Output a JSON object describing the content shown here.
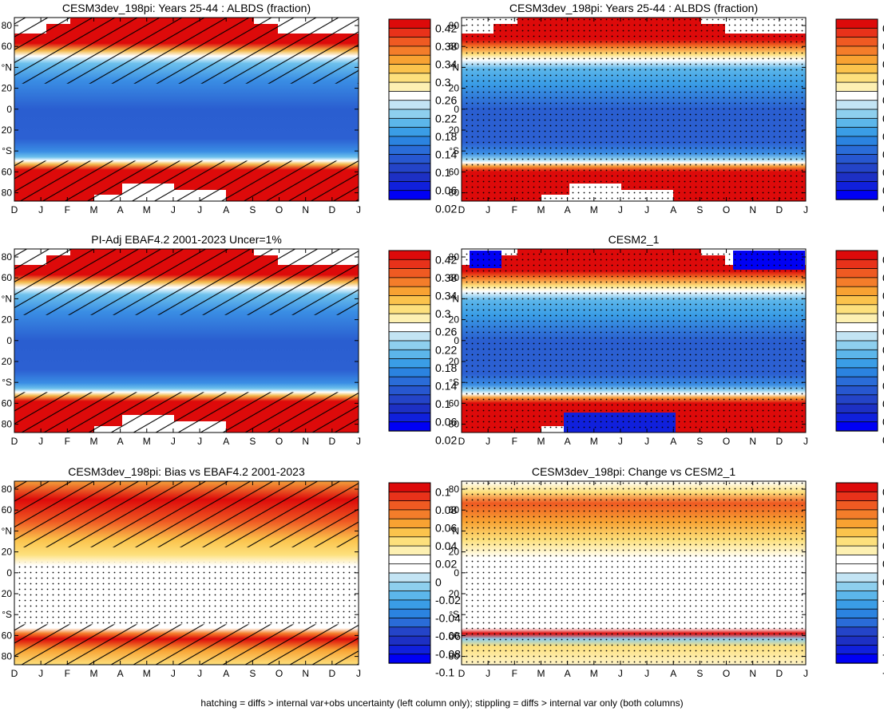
{
  "months": [
    "D",
    "J",
    "F",
    "M",
    "A",
    "M",
    "J",
    "J",
    "A",
    "S",
    "O",
    "N",
    "D",
    "J"
  ],
  "lat_labels": [
    "80",
    "60",
    "°N",
    "20",
    "0",
    "20",
    "°S",
    "60",
    "80"
  ],
  "footer": "hatching = diffs > internal var+obs uncertainty (left column only); stippling = diffs > internal var only (both columns)",
  "colorbars": {
    "albedo": {
      "labels": [
        "0.42",
        "0.38",
        "0.34",
        "0.3",
        "0.26",
        "0.22",
        "0.18",
        "0.14",
        "0.1",
        "0.06",
        "0.02"
      ],
      "colors": [
        "#dd0a0a",
        "#e8321a",
        "#ef5a22",
        "#f47d2a",
        "#f8a232",
        "#fbc34c",
        "#fde07c",
        "#fdf0b2",
        "#ffffff",
        "#c3e4f4",
        "#8ecfee",
        "#5cb6ea",
        "#3a9de6",
        "#2b83e0",
        "#2a6cd8",
        "#2757d0",
        "#2444c8",
        "#1d30c4",
        "#1020dc",
        "#0000f4"
      ]
    },
    "diff": {
      "labels": [
        "0.1",
        "0.08",
        "0.06",
        "0.04",
        "0.02",
        "0",
        "-0.02",
        "-0.04",
        "-0.06",
        "-0.08",
        "-0.1"
      ],
      "colors": [
        "#dd0a0a",
        "#e8321a",
        "#ef5a22",
        "#f47d2a",
        "#f8a232",
        "#fbc34c",
        "#fde07c",
        "#fdf0b2",
        "#ffffff",
        "#ffffff",
        "#c3e4f4",
        "#8ecfee",
        "#5cb6ea",
        "#3a9de6",
        "#2b83e0",
        "#2a6cd8",
        "#2444c8",
        "#1d30c4",
        "#1020dc",
        "#0000f4"
      ]
    }
  },
  "panels": [
    {
      "title": "CESM3dev_198pi: Years 25-44 : ALBDS (fraction)",
      "kind": "albedo",
      "hatch": true,
      "stipple": false
    },
    {
      "title": "CESM3dev_198pi: Years 25-44 : ALBDS (fraction)",
      "kind": "albedo",
      "hatch": false,
      "stipple": true
    },
    {
      "title": "PI-Adj EBAF4.2 2001-2023 Uncer=1%",
      "kind": "albedo",
      "hatch": true,
      "stipple": false
    },
    {
      "title": "CESM2_1",
      "kind": "albedo",
      "hatch": false,
      "stipple": true
    },
    {
      "title": "CESM3dev_198pi: Bias vs EBAF4.2 2001-2023",
      "kind": "diff",
      "hatch": true,
      "stipple": true
    },
    {
      "title": "CESM3dev_198pi: Change vs CESM2_1",
      "kind": "diff",
      "hatch": false,
      "stipple": true
    }
  ],
  "chart_data": [
    {
      "type": "heatmap",
      "title": "CESM3dev_198pi: Years 25-44 : ALBDS (fraction)",
      "xlabel": "",
      "ylabel": "",
      "x": [
        "D",
        "J",
        "F",
        "M",
        "A",
        "M",
        "J",
        "J",
        "A",
        "S",
        "O",
        "N",
        "D",
        "J"
      ],
      "ylim": [
        -90,
        90
      ],
      "colorbar": [
        0.02,
        0.42
      ]
    },
    {
      "type": "heatmap",
      "title": "CESM3dev_198pi: Years 25-44 : ALBDS (fraction)",
      "xlabel": "",
      "ylabel": "",
      "x": [
        "D",
        "J",
        "F",
        "M",
        "A",
        "M",
        "J",
        "J",
        "A",
        "S",
        "O",
        "N",
        "D",
        "J"
      ],
      "ylim": [
        -90,
        90
      ],
      "colorbar": [
        0.02,
        0.42
      ]
    },
    {
      "type": "heatmap",
      "title": "PI-Adj EBAF4.2 2001-2023 Uncer=1%",
      "xlabel": "",
      "ylabel": "",
      "x": [
        "D",
        "J",
        "F",
        "M",
        "A",
        "M",
        "J",
        "J",
        "A",
        "S",
        "O",
        "N",
        "D",
        "J"
      ],
      "ylim": [
        -90,
        90
      ],
      "colorbar": [
        0.02,
        0.42
      ]
    },
    {
      "type": "heatmap",
      "title": "CESM2_1",
      "xlabel": "",
      "ylabel": "",
      "x": [
        "D",
        "J",
        "F",
        "M",
        "A",
        "M",
        "J",
        "J",
        "A",
        "S",
        "O",
        "N",
        "D",
        "J"
      ],
      "ylim": [
        -90,
        90
      ],
      "colorbar": [
        0.02,
        0.42
      ]
    },
    {
      "type": "heatmap",
      "title": "CESM3dev_198pi: Bias vs EBAF4.2 2001-2023",
      "xlabel": "",
      "ylabel": "",
      "x": [
        "D",
        "J",
        "F",
        "M",
        "A",
        "M",
        "J",
        "J",
        "A",
        "S",
        "O",
        "N",
        "D",
        "J"
      ],
      "ylim": [
        -90,
        90
      ],
      "colorbar": [
        -0.1,
        0.1
      ]
    },
    {
      "type": "heatmap",
      "title": "CESM3dev_198pi: Change vs CESM2_1",
      "xlabel": "",
      "ylabel": "",
      "x": [
        "D",
        "J",
        "F",
        "M",
        "A",
        "M",
        "J",
        "J",
        "A",
        "S",
        "O",
        "N",
        "D",
        "J"
      ],
      "ylim": [
        -90,
        90
      ],
      "colorbar": [
        -0.1,
        0.1
      ]
    }
  ]
}
